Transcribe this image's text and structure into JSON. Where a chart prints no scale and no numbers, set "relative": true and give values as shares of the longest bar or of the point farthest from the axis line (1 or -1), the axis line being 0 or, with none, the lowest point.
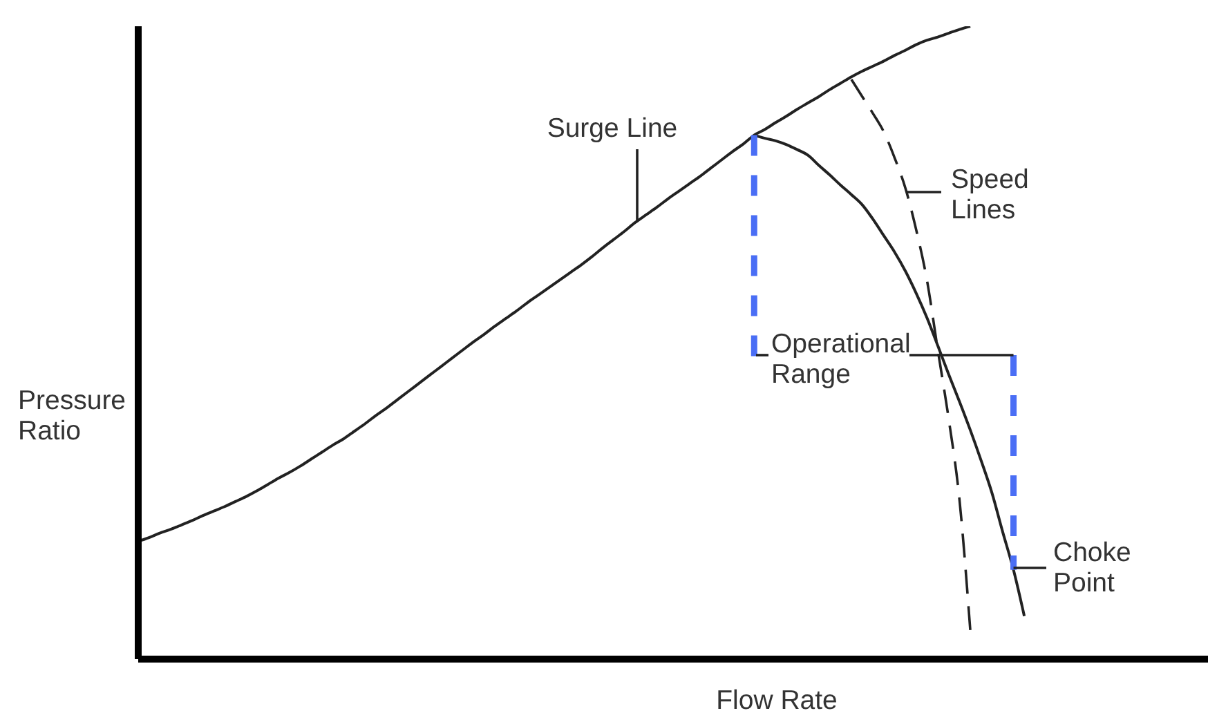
{
  "chart_data": {
    "type": "line",
    "relative": true,
    "xlabel": "Flow Rate",
    "ylabel": "Pressure\nRatio",
    "categories": [
      null,
      null,
      null,
      null,
      null,
      null,
      null,
      null,
      null,
      null,
      null,
      null,
      null,
      null,
      null,
      null,
      null,
      null,
      null,
      null,
      null,
      null,
      null,
      null,
      null,
      null,
      null,
      null,
      null,
      null,
      null,
      null,
      null,
      null,
      null,
      null,
      null,
      null,
      null,
      null,
      null,
      null,
      null,
      null,
      null,
      null,
      null,
      null,
      null,
      null,
      null,
      null,
      null,
      null,
      null,
      null,
      null,
      null,
      null,
      null,
      null,
      null,
      null,
      null,
      null,
      null,
      null,
      null,
      null,
      null,
      null,
      null,
      null,
      null,
      null,
      null,
      null,
      null,
      null,
      null,
      null,
      null,
      null,
      null,
      null,
      null,
      null,
      null,
      null,
      null,
      null,
      null,
      null,
      null,
      null,
      null,
      null,
      null,
      null,
      null
    ],
    "series": [
      {
        "color": "#222222",
        "values": [
          0.186,
          0.192,
          0.199,
          0.205,
          0.212,
          0.219,
          0.227,
          0.234,
          0.241,
          0.249,
          0.257,
          0.266,
          0.276,
          0.286,
          0.295,
          0.305,
          0.316,
          0.327,
          0.338,
          0.348,
          0.36,
          0.372,
          0.385,
          0.397,
          0.41,
          0.423,
          0.436,
          0.449,
          0.462,
          0.475,
          0.488,
          0.501,
          0.513,
          0.526,
          0.538,
          0.55,
          0.563,
          0.575,
          0.587,
          0.599,
          0.611,
          0.623,
          0.636,
          0.65,
          0.663,
          0.676,
          0.69,
          0.702,
          0.714,
          0.727,
          0.739,
          0.751,
          0.763,
          0.776,
          0.789,
          0.802,
          0.814,
          0.828,
          0.837,
          0.848,
          0.858,
          0.869,
          0.879,
          0.889,
          0.9,
          0.91,
          0.92,
          0.929,
          0.937,
          0.945,
          0.954,
          0.962,
          0.971,
          0.978,
          0.983,
          0.989,
          0.995,
          1,
          null,
          null,
          null,
          null,
          null,
          null,
          null,
          null,
          null,
          null,
          null,
          null,
          null,
          null,
          null,
          null,
          null,
          null,
          null,
          null,
          null,
          null
        ]
      },
      {
        "color": "#222222",
        "values": [
          null,
          null,
          null,
          null,
          null,
          null,
          null,
          null,
          null,
          null,
          null,
          null,
          null,
          null,
          null,
          null,
          null,
          null,
          null,
          null,
          null,
          null,
          null,
          null,
          null,
          null,
          null,
          null,
          null,
          null,
          null,
          null,
          null,
          null,
          null,
          null,
          null,
          null,
          null,
          null,
          null,
          null,
          null,
          null,
          null,
          null,
          null,
          null,
          null,
          null,
          null,
          null,
          null,
          null,
          null,
          null,
          null,
          0.828,
          0.823,
          0.819,
          0.813,
          0.805,
          0.796,
          0.78,
          0.765,
          0.749,
          0.734,
          0.718,
          0.695,
          0.669,
          0.643,
          0.613,
          0.578,
          0.539,
          0.495,
          0.45,
          0.407,
          0.362,
          0.314,
          0.263,
          0.201,
          0.141,
          0.068,
          null,
          null,
          null,
          null,
          null,
          null,
          null,
          null,
          null,
          null,
          null,
          null,
          null,
          null,
          null,
          null,
          null
        ]
      },
      {
        "color": "#222222",
        "line_style": "dashed",
        "values": [
          null,
          null,
          null,
          null,
          null,
          null,
          null,
          null,
          null,
          null,
          null,
          null,
          null,
          null,
          null,
          null,
          null,
          null,
          null,
          null,
          null,
          null,
          null,
          null,
          null,
          null,
          null,
          null,
          null,
          null,
          null,
          null,
          null,
          null,
          null,
          null,
          null,
          null,
          null,
          null,
          null,
          null,
          null,
          null,
          null,
          null,
          null,
          null,
          null,
          null,
          null,
          null,
          null,
          null,
          null,
          null,
          null,
          null,
          null,
          null,
          null,
          null,
          null,
          null,
          null,
          null,
          0.916,
          0.889,
          0.862,
          0.833,
          0.792,
          0.744,
          0.678,
          0.598,
          0.488,
          0.38,
          0.252,
          0.046,
          null,
          null,
          null,
          null,
          null,
          null,
          null,
          null,
          null,
          null,
          null,
          null,
          null,
          null,
          null,
          null,
          null,
          null,
          null,
          null,
          null,
          null
        ]
      }
    ],
    "annotations": [
      "Surge Line",
      "Speed\nLines",
      "Operational\nRange",
      "Choke\nPoint"
    ]
  }
}
